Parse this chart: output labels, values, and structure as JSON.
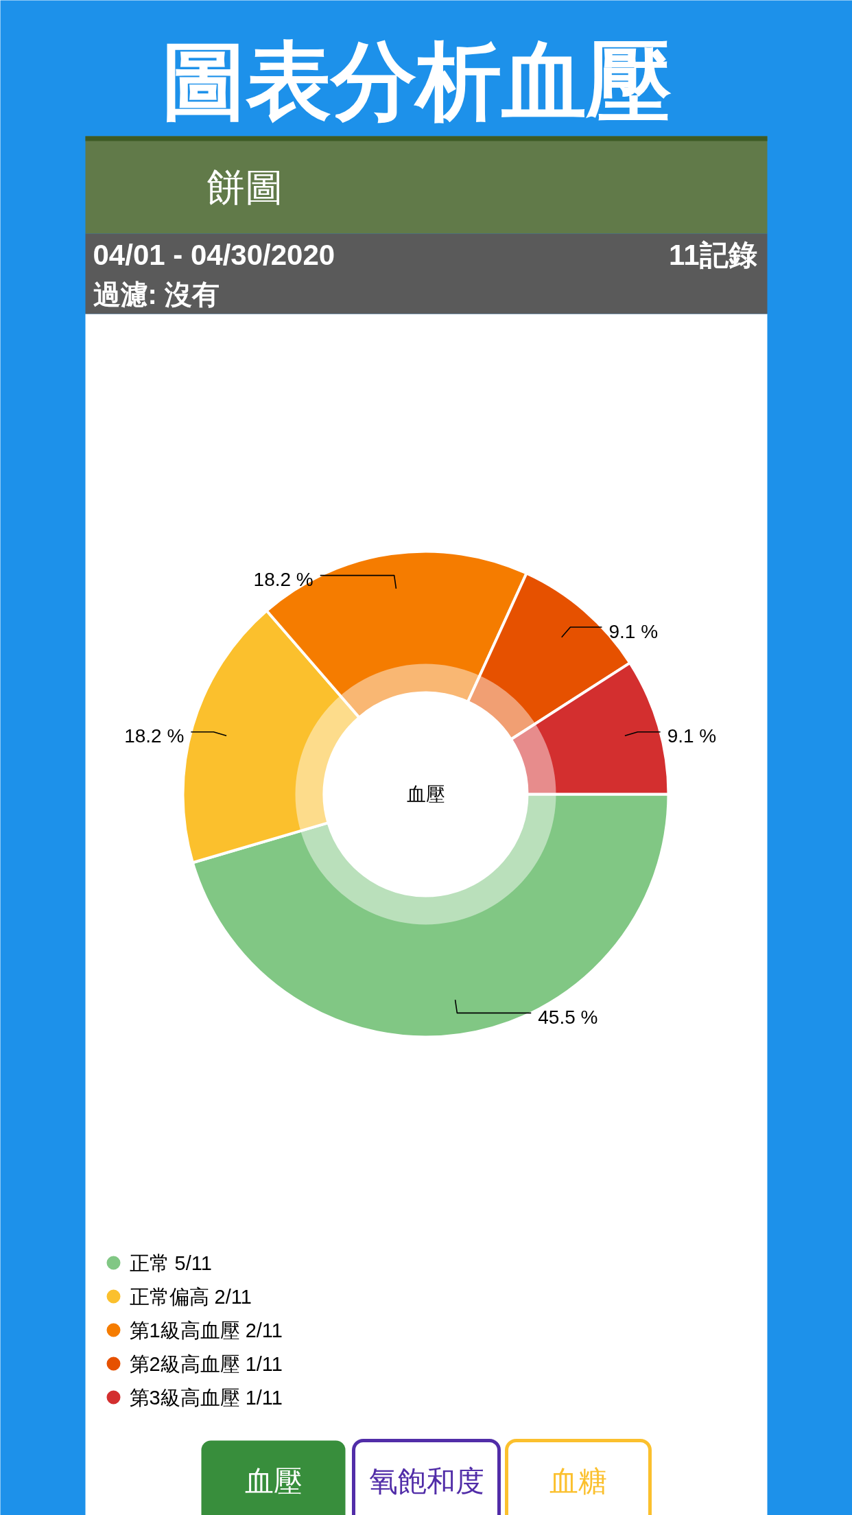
{
  "chart_data": {
    "type": "donut",
    "title": "圖表分析血壓",
    "subtitle": "餅圖",
    "categories": [
      "正常 5/11",
      "正常偏高 2/11",
      "第1級高血壓 2/11",
      "第2級高血壓 1/11",
      "第3級高血壓 1/11"
    ],
    "values": [
      45.5,
      18.2,
      18.2,
      9.1,
      9.1
    ],
    "colors": [
      "#81c784",
      "#fbc02d",
      "#f57c00",
      "#e65100",
      "#d32f2f"
    ],
    "value_labels": [
      "45.5 %",
      "18.2 %",
      "18.2 %",
      "9.1 %",
      "9.1 %"
    ],
    "legend": "bottom left",
    "annotations": [
      "04/01 - 04/30/2020",
      "11記錄",
      "過濾: 沒有",
      "血壓",
      "血壓",
      "氧飽和度",
      "血糖"
    ]
  }
}
